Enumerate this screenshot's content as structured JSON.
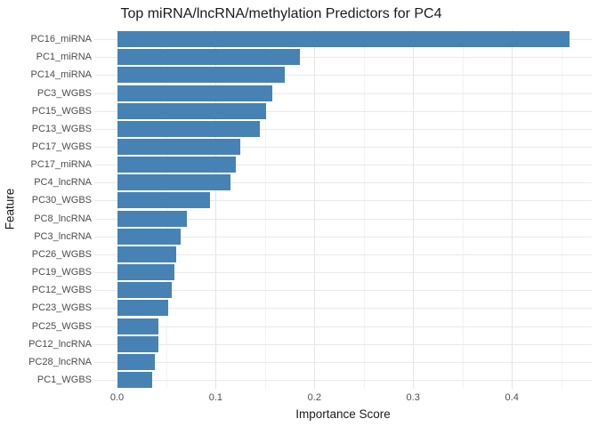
{
  "figure": {
    "background": "#ffffff"
  },
  "chart_data": {
    "type": "bar",
    "orientation": "horizontal",
    "title": "Top miRNA/lncRNA/methylation Predictors for PC4",
    "xlabel": "Importance Score",
    "ylabel": "Feature",
    "categories": [
      "PC16_miRNA",
      "PC1_miRNA",
      "PC14_miRNA",
      "PC3_WGBS",
      "PC15_WGBS",
      "PC13_WGBS",
      "PC17_WGBS",
      "PC17_miRNA",
      "PC4_lncRNA",
      "PC30_WGBS",
      "PC8_lncRNA",
      "PC3_lncRNA",
      "PC26_WGBS",
      "PC19_WGBS",
      "PC12_WGBS",
      "PC23_WGBS",
      "PC25_WGBS",
      "PC12_lncRNA",
      "PC28_lncRNA",
      "PC1_WGBS"
    ],
    "values": [
      0.458,
      0.185,
      0.17,
      0.157,
      0.151,
      0.145,
      0.125,
      0.12,
      0.115,
      0.094,
      0.071,
      0.064,
      0.06,
      0.058,
      0.055,
      0.052,
      0.042,
      0.042,
      0.038,
      0.036
    ],
    "x_ticks": [
      0.0,
      0.1,
      0.2,
      0.3,
      0.4
    ],
    "x_tick_labels": [
      "0.0",
      "0.1",
      "0.2",
      "0.3",
      "0.4"
    ],
    "x_minor_ticks": [
      0.05,
      0.15,
      0.25,
      0.35,
      0.45
    ],
    "xlim": [
      -0.023,
      0.481
    ],
    "grid": true,
    "legend": "none",
    "bar_color": "#4682B4",
    "major_grid_color": "#e4e4e4",
    "minor_grid_color": "#f2f2f2",
    "row_grid_color": "#e9e9e9",
    "axis_text_color": "#4d4d4d",
    "title_color": "#1a1a1a"
  }
}
